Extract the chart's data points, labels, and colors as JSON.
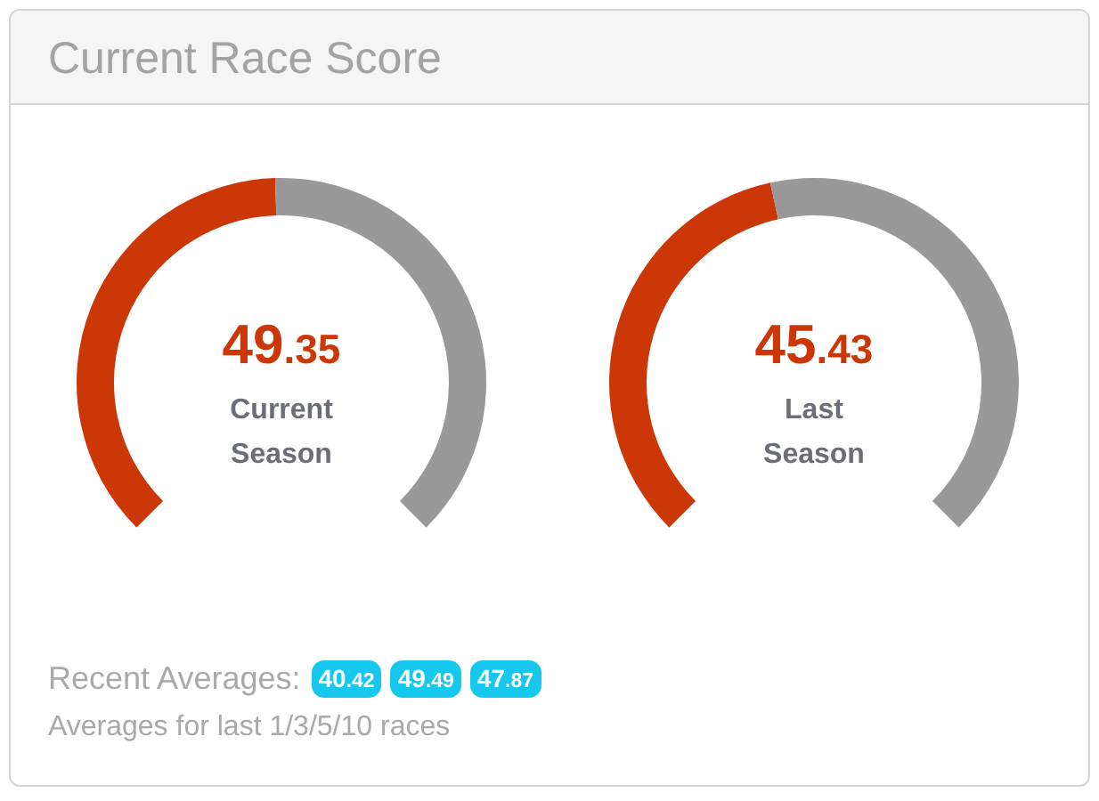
{
  "chart_data": [
    {
      "type": "donut",
      "title": "Current Race Score",
      "xlabel": "Current Season",
      "categories": [
        null,
        null
      ],
      "values": [
        49.35,
        50.65
      ],
      "colors": [
        "#cc3707",
        "#999999"
      ],
      "annotations": [
        "49.35"
      ]
    },
    {
      "type": "donut",
      "xlabel": "Last Season",
      "categories": [
        null,
        null
      ],
      "values": [
        45.43,
        54.57
      ],
      "colors": [
        "#cc3707",
        "#999999"
      ],
      "annotations": [
        "45.43"
      ]
    },
    {
      "type": "other",
      "title": "Recent Averages:",
      "values": [
        40.42,
        49.49,
        47.87
      ],
      "data_labels": true,
      "color": "#17c8ee",
      "annotations": [
        "Averages for last 1/3/5/10 races"
      ]
    }
  ]
}
